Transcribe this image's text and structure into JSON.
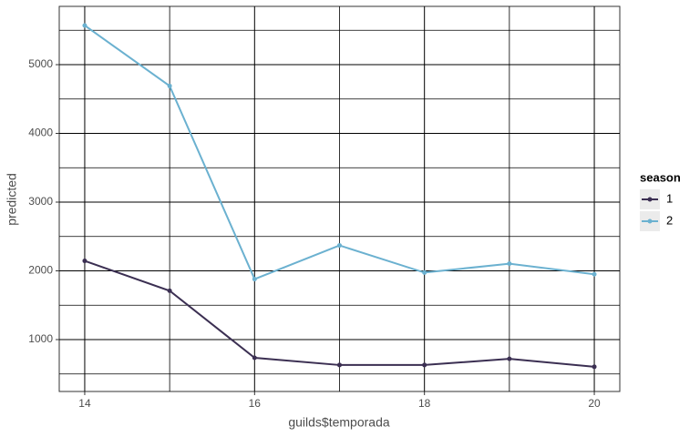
{
  "chart_data": {
    "type": "line",
    "x_label": "guilds$temporada",
    "y_label": "predicted",
    "legend_title": "season",
    "x": [
      14,
      15,
      16,
      17,
      18,
      19,
      20
    ],
    "series": [
      {
        "name": "1",
        "color": "#3b2f52",
        "values": [
          2145,
          1710,
          735,
          630,
          630,
          720,
          605
        ]
      },
      {
        "name": "2",
        "color": "#6bb1d0",
        "values": [
          5570,
          4690,
          1880,
          2370,
          1975,
          2105,
          1950
        ]
      }
    ],
    "xlim": [
      13.7,
      20.3
    ],
    "xticks": [
      14,
      16,
      18,
      20
    ],
    "xminor": [
      15,
      17,
      19
    ],
    "ylim": [
      245,
      5848
    ],
    "yticks": [
      1000,
      2000,
      3000,
      4000,
      5000
    ],
    "yminor": [
      500,
      1500,
      2500,
      3500,
      4500,
      5500
    ],
    "grid": true,
    "legend": "right"
  }
}
